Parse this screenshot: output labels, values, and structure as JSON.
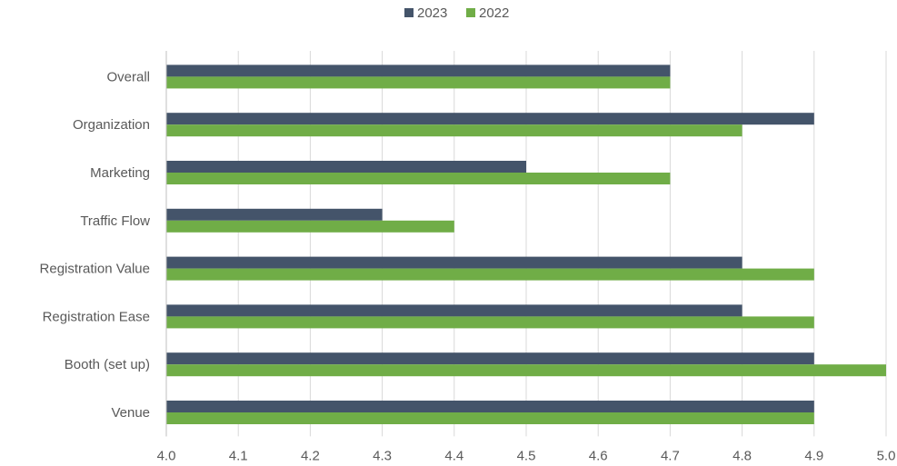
{
  "chart_data": {
    "type": "bar",
    "orientation": "horizontal",
    "categories": [
      "Overall",
      "Organization",
      "Marketing",
      "Traffic Flow",
      "Registration Value",
      "Registration Ease",
      "Booth (set up)",
      "Venue"
    ],
    "series": [
      {
        "name": "2023",
        "color": "#44546A",
        "values": [
          4.7,
          4.9,
          4.5,
          4.3,
          4.8,
          4.8,
          4.9,
          4.9
        ]
      },
      {
        "name": "2022",
        "color": "#70AD47",
        "values": [
          4.7,
          4.8,
          4.7,
          4.4,
          4.9,
          4.9,
          5.0,
          4.9
        ]
      }
    ],
    "xlim": [
      4.0,
      5.0
    ],
    "x_ticks": [
      "4.0",
      "4.1",
      "4.2",
      "4.3",
      "4.4",
      "4.5",
      "4.6",
      "4.7",
      "4.8",
      "4.9",
      "5.0"
    ],
    "gridlines": "vertical",
    "legend_position": "top-center",
    "title": "",
    "xlabel": "",
    "ylabel": ""
  }
}
